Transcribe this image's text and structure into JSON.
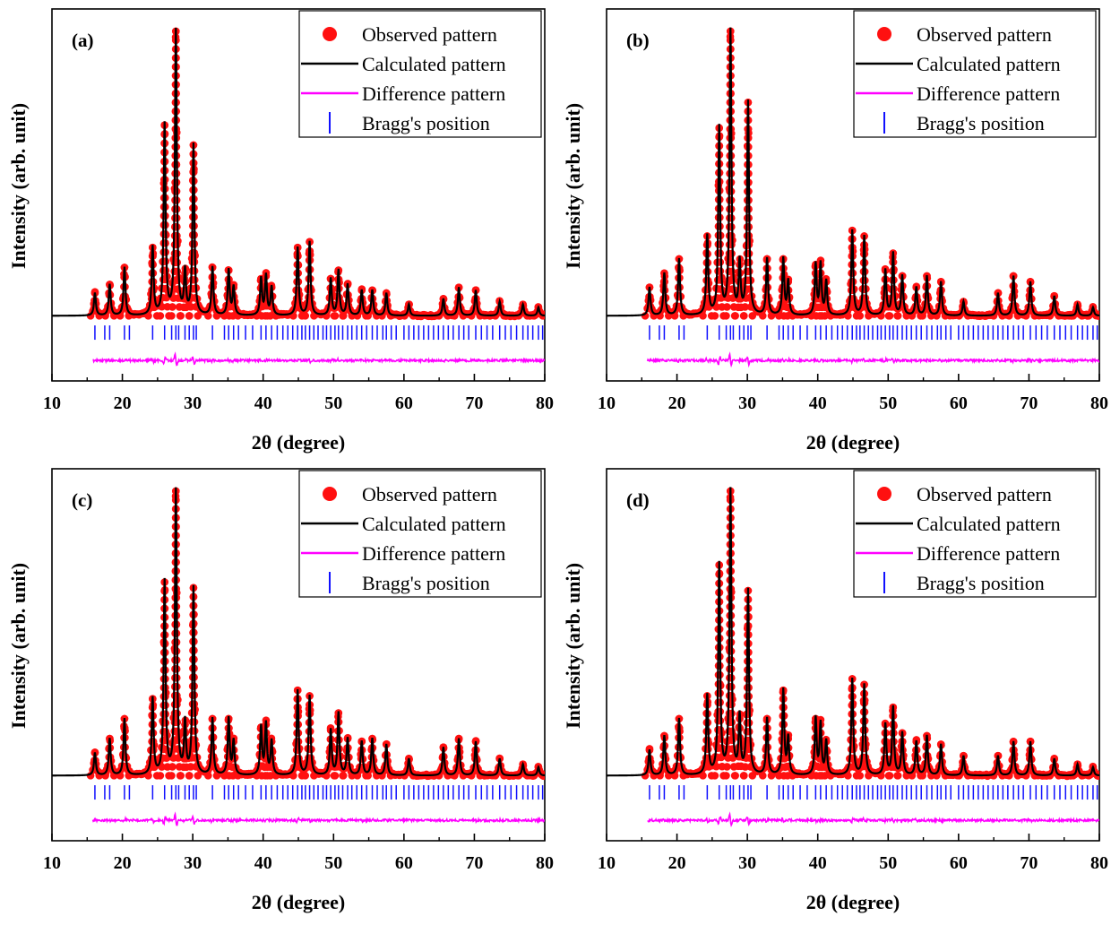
{
  "figure": {
    "xlabel": "2θ (degree)",
    "ylabel": "Intensity (arb. unit)"
  },
  "legend": {
    "entries": [
      {
        "key": "observed",
        "label": "Observed pattern",
        "color": "#ff1010"
      },
      {
        "key": "calculated",
        "label": "Calculated pattern",
        "color": "#000000"
      },
      {
        "key": "difference",
        "label": "Difference pattern",
        "color": "#ff00ff"
      },
      {
        "key": "bragg",
        "label": "Bragg's position",
        "color": "#1010ff"
      }
    ]
  },
  "chart_data": [
    {
      "type": "line",
      "panel_label": "(a)",
      "xlabel": "2θ (degree)",
      "ylabel": "Intensity (arb. unit)",
      "xlim": [
        10,
        80
      ],
      "xticks": [
        10,
        20,
        30,
        40,
        50,
        60,
        70,
        80
      ],
      "yticks_shown": false,
      "legend_position": "top-right",
      "series": [
        {
          "name": "Observed pattern",
          "style": "markers"
        },
        {
          "name": "Calculated pattern",
          "style": "line"
        },
        {
          "name": "Difference pattern",
          "style": "line"
        },
        {
          "name": "Bragg's position",
          "style": "ticks"
        }
      ],
      "peaks_2theta": [
        16.1,
        18.2,
        20.3,
        24.3,
        26.0,
        27.6,
        28.9,
        30.1,
        32.8,
        35.1,
        35.8,
        39.7,
        40.4,
        41.2,
        44.9,
        46.6,
        49.6,
        50.7,
        52.0,
        54.0,
        55.5,
        57.5,
        60.7,
        65.6,
        67.8,
        70.2,
        73.6,
        76.9,
        79.1
      ],
      "peaks_relative_intensity": [
        0.08,
        0.11,
        0.17,
        0.24,
        0.67,
        1.0,
        0.15,
        0.6,
        0.17,
        0.16,
        0.1,
        0.13,
        0.14,
        0.1,
        0.24,
        0.26,
        0.13,
        0.16,
        0.11,
        0.09,
        0.09,
        0.08,
        0.04,
        0.06,
        0.1,
        0.09,
        0.05,
        0.04,
        0.03
      ],
      "bragg_positions": [
        16.1,
        17.5,
        18.2,
        20.3,
        21.0,
        24.3,
        26.0,
        27.0,
        27.6,
        28.0,
        28.9,
        29.5,
        30.1,
        30.5,
        32.8,
        34.5,
        35.1,
        35.8,
        36.5,
        37.5,
        38.5,
        39.7,
        40.4,
        41.2,
        42.0,
        42.8,
        43.5,
        44.2,
        44.9,
        45.5,
        46.0,
        46.6,
        47.2,
        47.8,
        48.5,
        49.0,
        49.6,
        50.2,
        50.7,
        51.3,
        52.0,
        52.6,
        53.3,
        54.0,
        54.7,
        55.5,
        56.2,
        57.0,
        57.5,
        58.2,
        58.9,
        60.0,
        60.7,
        61.4,
        62.1,
        62.8,
        63.5,
        64.2,
        64.9,
        65.6,
        66.3,
        67.0,
        67.8,
        68.5,
        69.2,
        70.2,
        71.0,
        71.8,
        72.6,
        73.6,
        74.4,
        75.2,
        76.0,
        76.9,
        77.6,
        78.3,
        79.1,
        79.7
      ]
    },
    {
      "type": "line",
      "panel_label": "(b)",
      "xlabel": "2θ (degree)",
      "ylabel": "Intensity (arb. unit)",
      "xlim": [
        10,
        80
      ],
      "xticks": [
        10,
        20,
        30,
        40,
        50,
        60,
        70,
        80
      ],
      "yticks_shown": false,
      "legend_position": "top-right",
      "series": [
        {
          "name": "Observed pattern",
          "style": "markers"
        },
        {
          "name": "Calculated pattern",
          "style": "line"
        },
        {
          "name": "Difference pattern",
          "style": "line"
        },
        {
          "name": "Bragg's position",
          "style": "ticks"
        }
      ],
      "peaks_2theta": [
        16.1,
        18.2,
        20.3,
        24.3,
        26.0,
        27.6,
        28.9,
        30.1,
        32.8,
        35.1,
        35.8,
        39.7,
        40.4,
        41.2,
        44.9,
        46.6,
        49.6,
        50.7,
        52.0,
        54.0,
        55.5,
        57.5,
        60.7,
        65.6,
        67.8,
        70.2,
        73.6,
        76.9,
        79.1
      ],
      "peaks_relative_intensity": [
        0.1,
        0.15,
        0.2,
        0.28,
        0.66,
        1.0,
        0.18,
        0.75,
        0.2,
        0.2,
        0.12,
        0.18,
        0.18,
        0.12,
        0.3,
        0.28,
        0.16,
        0.22,
        0.14,
        0.1,
        0.14,
        0.12,
        0.05,
        0.08,
        0.14,
        0.12,
        0.07,
        0.04,
        0.03
      ],
      "bragg_positions": [
        16.1,
        17.5,
        18.2,
        20.3,
        21.0,
        24.3,
        26.0,
        27.0,
        27.6,
        28.0,
        28.9,
        29.5,
        30.1,
        30.5,
        32.8,
        34.5,
        35.1,
        35.8,
        36.5,
        37.5,
        38.5,
        39.7,
        40.4,
        41.2,
        42.0,
        42.8,
        43.5,
        44.2,
        44.9,
        45.5,
        46.0,
        46.6,
        47.2,
        47.8,
        48.5,
        49.0,
        49.6,
        50.2,
        50.7,
        51.3,
        52.0,
        52.6,
        53.3,
        54.0,
        54.7,
        55.5,
        56.2,
        57.0,
        57.5,
        58.2,
        58.9,
        60.0,
        60.7,
        61.4,
        62.1,
        62.8,
        63.5,
        64.2,
        64.9,
        65.6,
        66.3,
        67.0,
        67.8,
        68.5,
        69.2,
        70.2,
        71.0,
        71.8,
        72.6,
        73.6,
        74.4,
        75.2,
        76.0,
        76.9,
        77.6,
        78.3,
        79.1,
        79.7
      ]
    },
    {
      "type": "line",
      "panel_label": "(c)",
      "xlabel": "2θ (degree)",
      "ylabel": "Intensity (arb. unit)",
      "xlim": [
        10,
        80
      ],
      "xticks": [
        10,
        20,
        30,
        40,
        50,
        60,
        70,
        80
      ],
      "yticks_shown": false,
      "legend_position": "top-right",
      "series": [
        {
          "name": "Observed pattern",
          "style": "markers"
        },
        {
          "name": "Calculated pattern",
          "style": "line"
        },
        {
          "name": "Difference pattern",
          "style": "line"
        },
        {
          "name": "Bragg's position",
          "style": "ticks"
        }
      ],
      "peaks_2theta": [
        16.1,
        18.2,
        20.3,
        24.3,
        26.0,
        27.6,
        28.9,
        30.1,
        32.8,
        35.1,
        35.8,
        39.7,
        40.4,
        41.2,
        44.9,
        46.6,
        49.6,
        50.7,
        52.0,
        54.0,
        55.5,
        57.5,
        60.7,
        65.6,
        67.8,
        70.2,
        73.6,
        76.9,
        79.1
      ],
      "peaks_relative_intensity": [
        0.08,
        0.13,
        0.2,
        0.27,
        0.68,
        1.0,
        0.18,
        0.66,
        0.2,
        0.2,
        0.12,
        0.17,
        0.18,
        0.12,
        0.3,
        0.28,
        0.16,
        0.22,
        0.13,
        0.12,
        0.13,
        0.11,
        0.06,
        0.1,
        0.13,
        0.12,
        0.06,
        0.04,
        0.03
      ],
      "bragg_positions": [
        16.1,
        17.5,
        18.2,
        20.3,
        21.0,
        24.3,
        26.0,
        27.0,
        27.6,
        28.0,
        28.9,
        29.5,
        30.1,
        30.5,
        32.8,
        34.5,
        35.1,
        35.8,
        36.5,
        37.5,
        38.5,
        39.7,
        40.4,
        41.2,
        42.0,
        42.8,
        43.5,
        44.2,
        44.9,
        45.5,
        46.0,
        46.6,
        47.2,
        47.8,
        48.5,
        49.0,
        49.6,
        50.2,
        50.7,
        51.3,
        52.0,
        52.6,
        53.3,
        54.0,
        54.7,
        55.5,
        56.2,
        57.0,
        57.5,
        58.2,
        58.9,
        60.0,
        60.7,
        61.4,
        62.1,
        62.8,
        63.5,
        64.2,
        64.9,
        65.6,
        66.3,
        67.0,
        67.8,
        68.5,
        69.2,
        70.2,
        71.0,
        71.8,
        72.6,
        73.6,
        74.4,
        75.2,
        76.0,
        76.9,
        77.6,
        78.3,
        79.1,
        79.7
      ]
    },
    {
      "type": "line",
      "panel_label": "(d)",
      "xlabel": "2θ (degree)",
      "ylabel": "Intensity (arb. unit)",
      "xlim": [
        10,
        80
      ],
      "xticks": [
        10,
        20,
        30,
        40,
        50,
        60,
        70,
        80
      ],
      "yticks_shown": false,
      "legend_position": "top-right",
      "series": [
        {
          "name": "Observed pattern",
          "style": "markers"
        },
        {
          "name": "Calculated pattern",
          "style": "line"
        },
        {
          "name": "Difference pattern",
          "style": "line"
        },
        {
          "name": "Bragg's position",
          "style": "ticks"
        }
      ],
      "peaks_2theta": [
        16.1,
        18.2,
        20.3,
        24.3,
        26.0,
        27.6,
        28.9,
        30.1,
        32.8,
        35.1,
        35.8,
        39.7,
        40.4,
        41.2,
        44.9,
        46.6,
        49.6,
        50.7,
        52.0,
        54.0,
        55.5,
        57.5,
        60.7,
        65.6,
        67.8,
        70.2,
        73.6,
        76.9,
        79.1
      ],
      "peaks_relative_intensity": [
        0.09,
        0.14,
        0.2,
        0.28,
        0.74,
        1.0,
        0.2,
        0.65,
        0.2,
        0.3,
        0.13,
        0.2,
        0.18,
        0.12,
        0.34,
        0.32,
        0.18,
        0.24,
        0.15,
        0.12,
        0.14,
        0.11,
        0.07,
        0.07,
        0.12,
        0.12,
        0.06,
        0.04,
        0.03
      ],
      "bragg_positions": [
        16.1,
        17.5,
        18.2,
        20.3,
        21.0,
        24.3,
        26.0,
        27.0,
        27.6,
        28.0,
        28.9,
        29.5,
        30.1,
        30.5,
        32.8,
        34.5,
        35.1,
        35.8,
        36.5,
        37.5,
        38.5,
        39.7,
        40.4,
        41.2,
        42.0,
        42.8,
        43.5,
        44.2,
        44.9,
        45.5,
        46.0,
        46.6,
        47.2,
        47.8,
        48.5,
        49.0,
        49.6,
        50.2,
        50.7,
        51.3,
        52.0,
        52.6,
        53.3,
        54.0,
        54.7,
        55.5,
        56.2,
        57.0,
        57.5,
        58.2,
        58.9,
        60.0,
        60.7,
        61.4,
        62.1,
        62.8,
        63.5,
        64.2,
        64.9,
        65.6,
        66.3,
        67.0,
        67.8,
        68.5,
        69.2,
        70.2,
        71.0,
        71.8,
        72.6,
        73.6,
        74.4,
        75.2,
        76.0,
        76.9,
        77.6,
        78.3,
        79.1,
        79.7
      ]
    }
  ]
}
